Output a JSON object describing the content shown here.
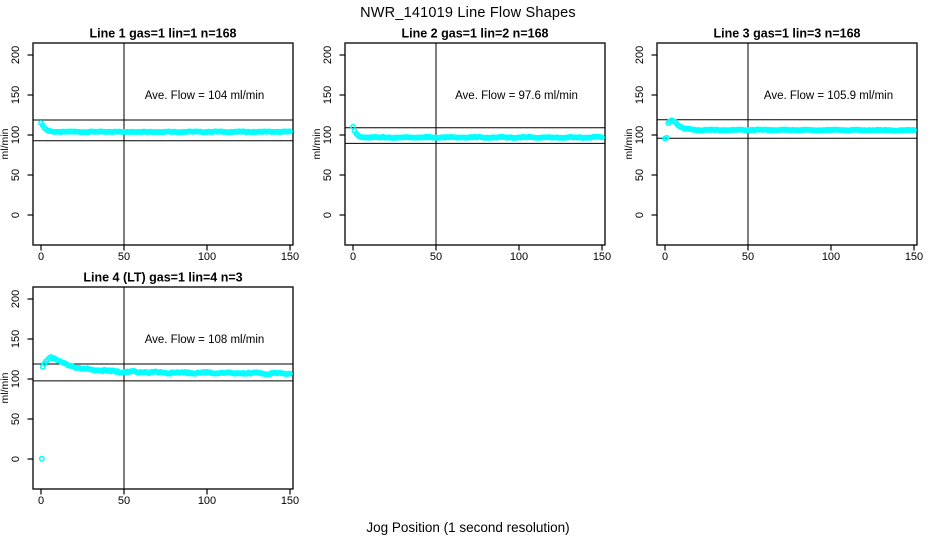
{
  "figure": {
    "title": "NWR_141019  Line Flow Shapes",
    "xlabel": "Jog Position (1 second resolution)"
  },
  "chart_data": {
    "type": "scatter",
    "ylabel": "ml/min",
    "x_ticks": [
      0,
      50,
      100,
      150
    ],
    "y_ticks": [
      0,
      50,
      100,
      150,
      200
    ],
    "xlim": [
      -6,
      156
    ],
    "ylim": [
      -40,
      220
    ],
    "vline_x": 50,
    "point_color": "#00FFFF",
    "axis_color": "#000000",
    "annotation_center_x": 98.5,
    "annotation_center_y": 150,
    "panels": [
      {
        "title": "Line 1 gas=1 lin=1 n=168",
        "annotation": "Ave. Flow =  104  ml/min",
        "ave_flow": 104,
        "n": 168,
        "ref_lines": [
          118.8,
          92.8
        ],
        "x_start": 0,
        "x_end": 150,
        "noise_amp": 0.5,
        "keypoints": [
          [
            0,
            115.5
          ],
          [
            1,
            112
          ],
          [
            2,
            109
          ],
          [
            3,
            107
          ],
          [
            4,
            105.5
          ],
          [
            6,
            104.5
          ],
          [
            9,
            104
          ],
          [
            150,
            104
          ]
        ],
        "outliers": []
      },
      {
        "title": "Line 2 gas=1 lin=2 n=168",
        "annotation": "Ave. Flow =  97.6  ml/min",
        "ave_flow": 97.6,
        "n": 168,
        "ref_lines": [
          109,
          89.5
        ],
        "x_start": 0,
        "x_end": 150,
        "noise_amp": 0.7,
        "keypoints": [
          [
            0,
            110
          ],
          [
            1,
            105
          ],
          [
            2,
            101.5
          ],
          [
            3,
            99.5
          ],
          [
            4,
            98.3
          ],
          [
            6,
            97.4
          ],
          [
            9,
            97
          ],
          [
            150,
            97
          ]
        ],
        "outliers": []
      },
      {
        "title": "Line 3 gas=1 lin=3 n=168",
        "annotation": "Ave. Flow =  105.9  ml/min",
        "ave_flow": 105.9,
        "n": 168,
        "ref_lines": [
          119,
          96
        ],
        "x_start": 2,
        "x_end": 150,
        "noise_amp": 0.6,
        "keypoints": [
          [
            2,
            115
          ],
          [
            3,
            117.5
          ],
          [
            4,
            118.5
          ],
          [
            5,
            118
          ],
          [
            6,
            116.5
          ],
          [
            8,
            112
          ],
          [
            10,
            109.5
          ],
          [
            12,
            108
          ],
          [
            15,
            107
          ],
          [
            20,
            106.3
          ],
          [
            150,
            106
          ]
        ],
        "outliers": [
          [
            0,
            95.5
          ],
          [
            1,
            96.5
          ]
        ]
      },
      {
        "title": "Line 4 (LT) gas=1 lin=4 n=3",
        "annotation": "Ave. Flow =  108  ml/min",
        "ave_flow": 108,
        "n": 3,
        "ref_lines": [
          118.8,
          97.6
        ],
        "x_start": 1,
        "x_end": 150,
        "noise_amp": 1.1,
        "keypoints": [
          [
            1,
            116
          ],
          [
            2,
            119.5
          ],
          [
            3,
            122.5
          ],
          [
            4,
            125
          ],
          [
            5,
            126.5
          ],
          [
            6,
            127
          ],
          [
            7,
            126.5
          ],
          [
            8,
            125.5
          ],
          [
            10,
            123.5
          ],
          [
            12,
            121
          ],
          [
            15,
            118.5
          ],
          [
            20,
            115
          ],
          [
            25,
            113
          ],
          [
            30,
            111.5
          ],
          [
            40,
            110
          ],
          [
            50,
            109.2
          ],
          [
            60,
            108.6
          ],
          [
            80,
            108
          ],
          [
            100,
            107.6
          ],
          [
            120,
            107.2
          ],
          [
            150,
            107
          ]
        ],
        "outliers": [
          [
            0.5,
            0.5
          ]
        ]
      }
    ]
  }
}
